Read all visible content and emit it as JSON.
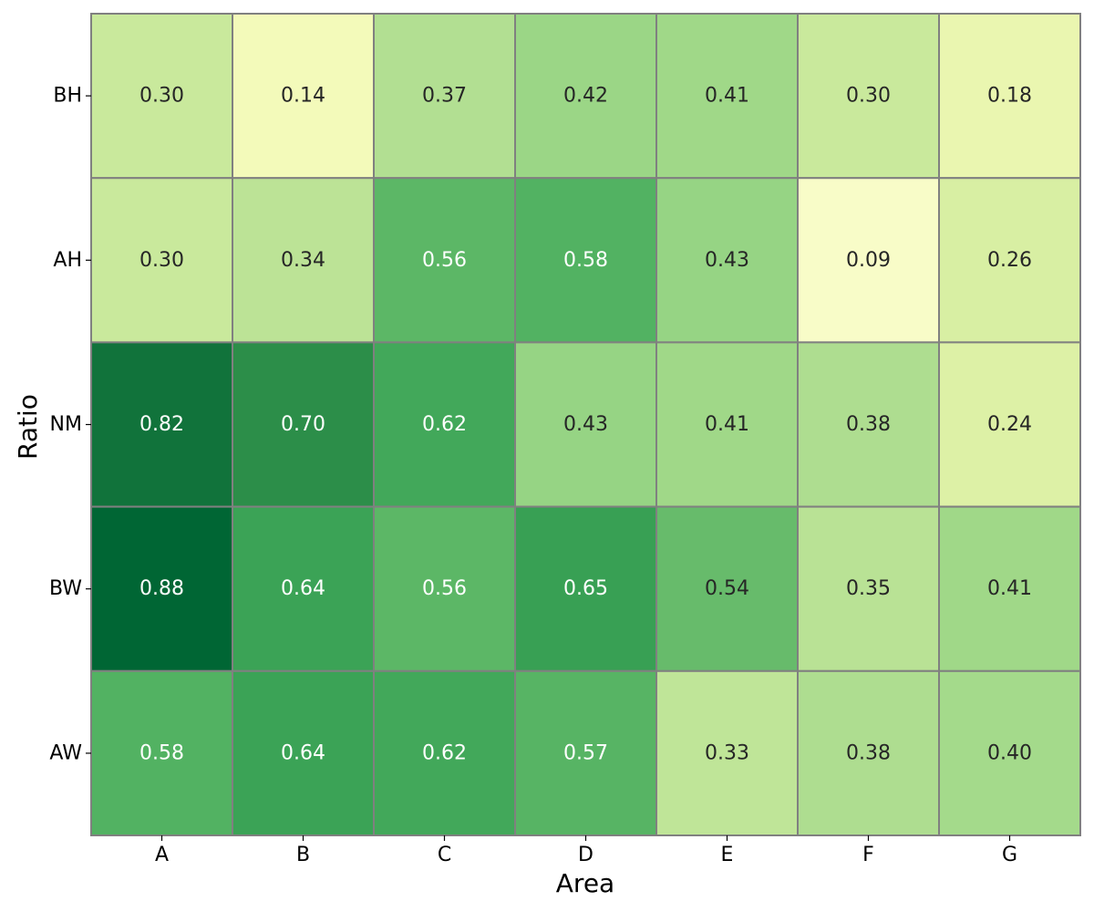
{
  "chart_data": {
    "type": "heatmap",
    "title": "",
    "xlabel": "Area",
    "ylabel": "Ratio",
    "x_categories": [
      "A",
      "B",
      "C",
      "D",
      "E",
      "F",
      "G"
    ],
    "y_categories": [
      "BH",
      "AH",
      "NM",
      "BW",
      "AW"
    ],
    "values": [
      [
        0.3,
        0.14,
        0.37,
        0.42,
        0.41,
        0.3,
        0.18
      ],
      [
        0.3,
        0.34,
        0.56,
        0.58,
        0.43,
        0.09,
        0.26
      ],
      [
        0.82,
        0.7,
        0.62,
        0.43,
        0.41,
        0.38,
        0.24
      ],
      [
        0.88,
        0.64,
        0.56,
        0.65,
        0.54,
        0.35,
        0.41
      ],
      [
        0.58,
        0.64,
        0.62,
        0.57,
        0.33,
        0.38,
        0.4
      ]
    ],
    "value_format": "2-decimal",
    "colormap": "YlGn",
    "colorbar": false,
    "cell_border_color": "#808080",
    "text_color_dark": "#262626",
    "text_color_light": "#ffffff"
  }
}
